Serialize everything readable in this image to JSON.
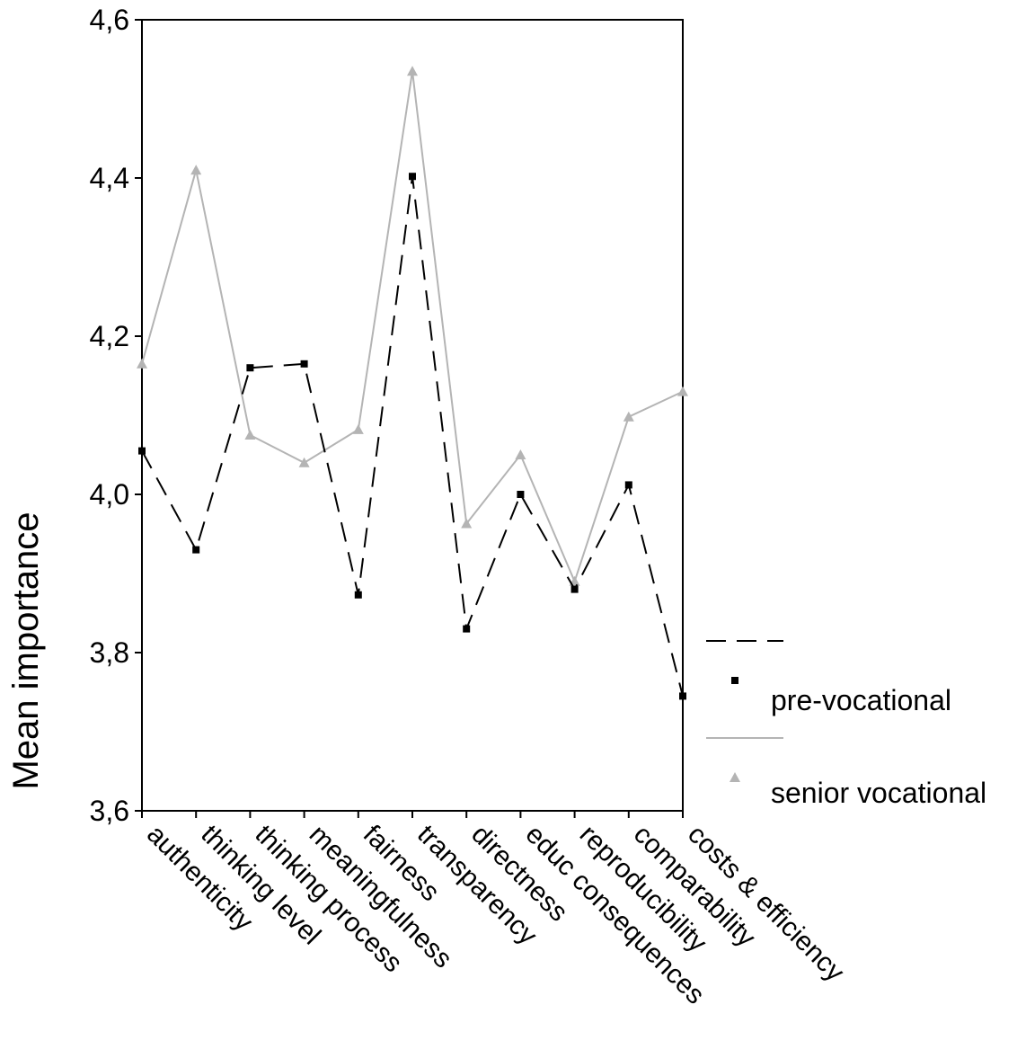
{
  "chart_data": {
    "type": "line",
    "title": "",
    "xlabel": "",
    "ylabel": "Mean importance",
    "ylim": [
      3.6,
      4.6
    ],
    "yticks": [
      "3,6",
      "3,8",
      "4,0",
      "4,2",
      "4,4",
      "4,6"
    ],
    "categories": [
      "authenticity",
      "thinking level",
      "thinking process",
      "meaningfulness",
      "fairness",
      "transparency",
      "directness",
      "educ consequences",
      "reproducibility",
      "comparability",
      "costs & efficiency"
    ],
    "series": [
      {
        "name": "pre-vocational",
        "values": [
          4.055,
          3.93,
          4.16,
          4.165,
          3.873,
          4.402,
          3.83,
          4.0,
          3.88,
          4.012,
          3.745
        ],
        "color": "#000000",
        "line": "dashed",
        "marker": "square"
      },
      {
        "name": "senior vocational",
        "values": [
          4.165,
          4.41,
          4.075,
          4.04,
          4.082,
          4.535,
          3.963,
          4.05,
          3.89,
          4.098,
          4.13
        ],
        "color": "#b4b4b4",
        "line": "solid",
        "marker": "triangle"
      }
    ],
    "grid": false,
    "legend_position": "right"
  }
}
